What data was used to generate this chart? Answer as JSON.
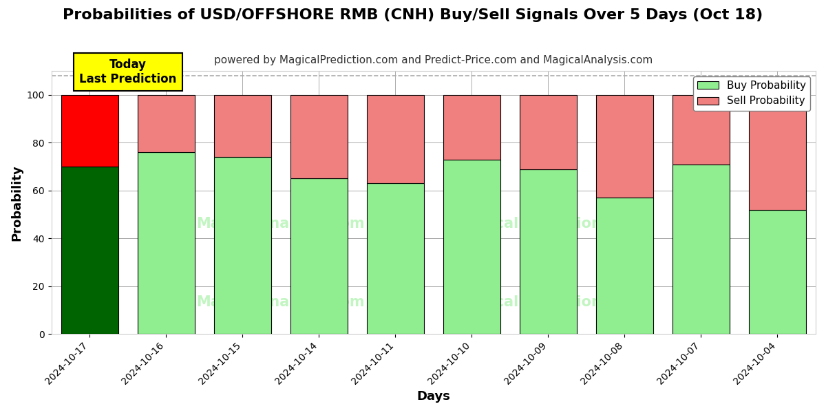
{
  "title": "Probabilities of USD/OFFSHORE RMB (CNH) Buy/Sell Signals Over 5 Days (Oct 18)",
  "subtitle": "powered by MagicalPrediction.com and Predict-Price.com and MagicalAnalysis.com",
  "xlabel": "Days",
  "ylabel": "Probability",
  "categories": [
    "2024-10-17",
    "2024-10-16",
    "2024-10-15",
    "2024-10-14",
    "2024-10-11",
    "2024-10-10",
    "2024-10-09",
    "2024-10-08",
    "2024-10-07",
    "2024-10-04"
  ],
  "buy_values": [
    70,
    76,
    74,
    65,
    63,
    73,
    69,
    57,
    71,
    52
  ],
  "sell_values": [
    30,
    24,
    26,
    35,
    37,
    27,
    31,
    43,
    29,
    48
  ],
  "today_bar_buy_color": "#006400",
  "today_bar_sell_color": "#FF0000",
  "other_bar_buy_color": "#90EE90",
  "other_bar_sell_color": "#F08080",
  "bar_edgecolor": "#000000",
  "today_annotation_text": "Today\nLast Prediction",
  "today_annotation_bg": "#FFFF00",
  "ylim": [
    0,
    110
  ],
  "yticks": [
    0,
    20,
    40,
    60,
    80,
    100
  ],
  "dashed_line_y": 108,
  "legend_labels": [
    "Buy Probability",
    "Sell Probability"
  ],
  "legend_colors": [
    "#90EE90",
    "#F08080"
  ],
  "background_color": "#ffffff",
  "grid_color": "#aaaaaa",
  "title_fontsize": 16,
  "subtitle_fontsize": 11,
  "axis_label_fontsize": 13,
  "tick_fontsize": 10,
  "legend_fontsize": 11,
  "bar_width": 0.75
}
